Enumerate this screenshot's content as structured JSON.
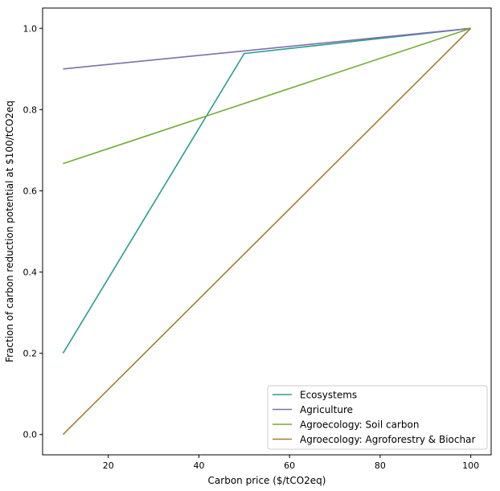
{
  "chart_data": {
    "type": "line",
    "title": "",
    "xlabel": "Carbon price ($/tCO2eq)",
    "ylabel": "Fraction of carbon reduction potential at $100/tCO2eq",
    "xlim": [
      5.5,
      104.5
    ],
    "ylim": [
      -0.05,
      1.05
    ],
    "xticks": [
      20,
      40,
      60,
      80,
      100
    ],
    "yticks": [
      0.0,
      0.2,
      0.4,
      0.6,
      0.8,
      1.0
    ],
    "xtick_labels": [
      "20",
      "40",
      "60",
      "80",
      "100"
    ],
    "ytick_labels": [
      "0.0",
      "0.2",
      "0.4",
      "0.6",
      "0.8",
      "1.0"
    ],
    "grid": false,
    "legend_position": "bottom-right",
    "series": [
      {
        "name": "Ecosystems",
        "color": "#2a9d8f",
        "x": [
          10,
          50,
          100
        ],
        "y": [
          0.2,
          0.938,
          1.0
        ]
      },
      {
        "name": "Agriculture",
        "color": "#7b6fb0",
        "x": [
          10,
          100
        ],
        "y": [
          0.9,
          1.0
        ]
      },
      {
        "name": "Agroecology: Soil carbon",
        "color": "#72ac34",
        "x": [
          10,
          100
        ],
        "y": [
          0.667,
          1.0
        ]
      },
      {
        "name": "Agroecology: Agroforestry & Biochar",
        "color": "#a87b2d",
        "x": [
          10,
          100
        ],
        "y": [
          0.0,
          1.0
        ]
      }
    ]
  }
}
